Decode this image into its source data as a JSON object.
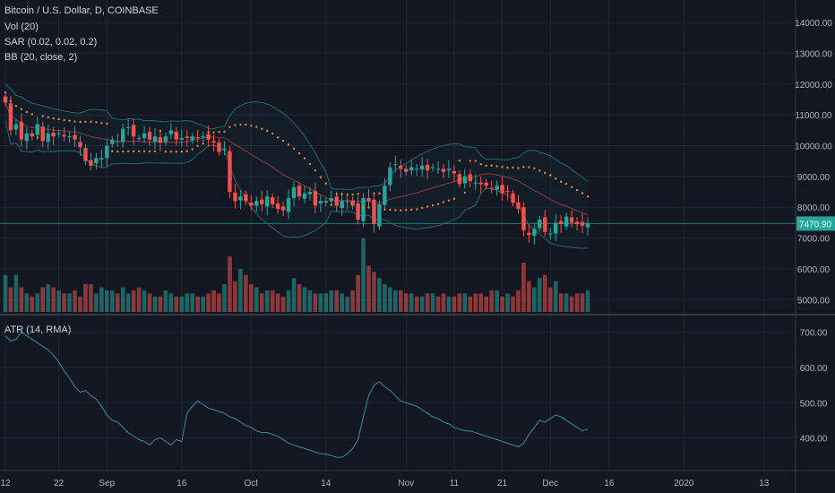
{
  "legend": {
    "symbol": "Bitcoin / U.S. Dollar, D, COINBASE",
    "vol": "Vol (20)",
    "sar": "SAR (0.02, 0.02, 0.2)",
    "bb": "BB (20, close, 2)",
    "atr": "ATR (14, RMA)"
  },
  "last_price_label": "7470.90",
  "colors": {
    "background": "#131722",
    "up": "#26a69a",
    "down": "#ef5350",
    "bb": "#1f6b72",
    "basis": "#8e3b44",
    "sar": "#f0852d",
    "atr": "#2f8fa0",
    "grid": "#232734"
  },
  "chart_data": [
    {
      "type": "candlestick",
      "x_ticks": [
        "12",
        "22",
        "Sep",
        "16",
        "Oct",
        "14",
        "Nov",
        "11",
        "21",
        "Dec",
        "16",
        "2020",
        "13"
      ],
      "y_ticks": [
        "14000.00",
        "13000.00",
        "12000.00",
        "11000.00",
        "10000.00",
        "9000.00",
        "8000.00",
        "7000.00",
        "6000.00",
        "5000.00"
      ],
      "ylim": [
        4600,
        14500
      ],
      "last_price": 7470.9,
      "close": [
        11400,
        10500,
        10700,
        10200,
        10400,
        10300,
        10700,
        10150,
        10400,
        10300,
        10400,
        10300,
        10300,
        10200,
        9950,
        9500,
        9350,
        9600,
        9600,
        10000,
        10200,
        10150,
        10550,
        10600,
        10300,
        10250,
        10400,
        10200,
        10300,
        10100,
        10300,
        10500,
        10200,
        10250,
        10250,
        10300,
        10250,
        10300,
        10200,
        10100,
        9800,
        9900,
        8500,
        8200,
        8350,
        8200,
        8050,
        8200,
        8100,
        8350,
        8100,
        7950,
        7900,
        8300,
        8650,
        8350,
        8450,
        8500,
        8050,
        8200,
        8200,
        8300,
        8050,
        8200,
        8200,
        8050,
        7600,
        8300,
        8200,
        7450,
        8100,
        8700,
        9300,
        9400,
        9250,
        9150,
        9300,
        9250,
        9350,
        9200,
        9300,
        9250,
        9150,
        9250,
        9100,
        8750,
        9000,
        8850,
        8800,
        8750,
        8700,
        8600,
        8700,
        8450,
        8500,
        8150,
        7950,
        7250,
        7100,
        7300,
        7600,
        7200,
        7150,
        7500,
        7450,
        7700,
        7500,
        7450,
        7400,
        7470.9
      ],
      "volume": [
        5800,
        5400,
        5800,
        5400,
        5200,
        5100,
        5200,
        5400,
        5500,
        5400,
        5300,
        5200,
        5200,
        5300,
        5100,
        5500,
        5500,
        5200,
        5400,
        5300,
        5300,
        5200,
        5400,
        5200,
        5300,
        5400,
        5300,
        5200,
        5100,
        5100,
        5300,
        5200,
        5100,
        5100,
        5200,
        5200,
        5100,
        5100,
        5200,
        5300,
        5200,
        5500,
        6400,
        5600,
        6000,
        5800,
        5500,
        5400,
        5200,
        5300,
        5300,
        5200,
        5100,
        5300,
        5700,
        5500,
        5400,
        5300,
        5200,
        5200,
        5200,
        5300,
        5300,
        5200,
        5100,
        5300,
        5800,
        7000,
        6100,
        5900,
        5700,
        5500,
        5400,
        5300,
        5300,
        5200,
        5200,
        5100,
        5100,
        5200,
        5200,
        5100,
        5200,
        5100,
        5100,
        5200,
        5200,
        5100,
        5200,
        5200,
        5100,
        5300,
        5300,
        5100,
        5200,
        5100,
        5300,
        6200,
        5600,
        5400,
        5700,
        5800,
        5400,
        5600,
        5200,
        5200,
        5100,
        5200,
        5200,
        5300
      ]
    },
    {
      "type": "line",
      "name": "ATR (14, RMA)",
      "y_ticks": [
        "700.00",
        "600.00",
        "500.00",
        "400.00"
      ],
      "ylim": [
        320,
        740
      ],
      "values": [
        690,
        675,
        680,
        700,
        690,
        680,
        670,
        660,
        650,
        635,
        615,
        590,
        570,
        545,
        530,
        535,
        520,
        510,
        490,
        465,
        450,
        445,
        430,
        415,
        405,
        395,
        390,
        380,
        395,
        400,
        390,
        380,
        395,
        390,
        470,
        490,
        505,
        495,
        485,
        480,
        475,
        470,
        460,
        455,
        445,
        435,
        430,
        420,
        415,
        415,
        410,
        405,
        395,
        385,
        380,
        375,
        370,
        365,
        360,
        355,
        355,
        350,
        345,
        345,
        355,
        370,
        395,
        460,
        520,
        550,
        560,
        545,
        535,
        520,
        505,
        500,
        495,
        490,
        480,
        470,
        460,
        455,
        445,
        440,
        430,
        425,
        420,
        420,
        415,
        410,
        405,
        400,
        395,
        390,
        385,
        380,
        375,
        385,
        410,
        430,
        450,
        445,
        455,
        465,
        460,
        450,
        440,
        430,
        420,
        425
      ]
    }
  ]
}
